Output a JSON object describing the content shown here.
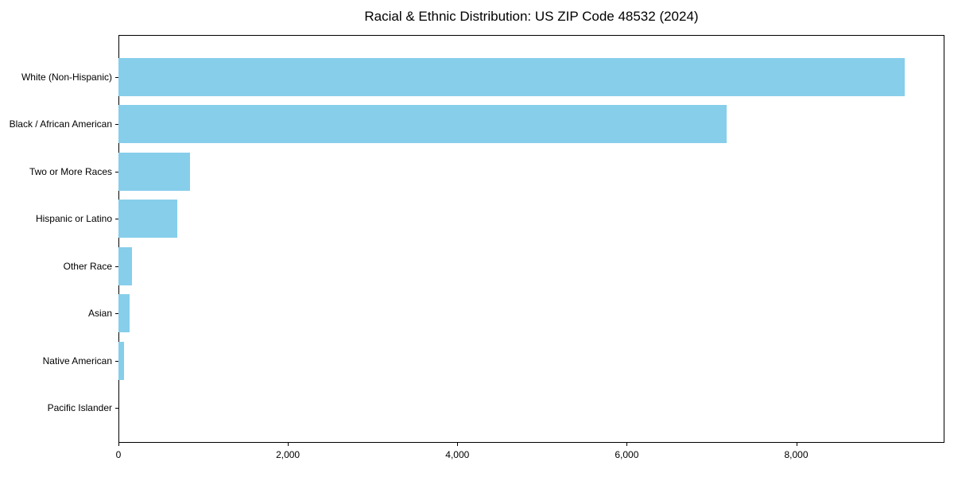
{
  "chart_data": {
    "type": "bar",
    "orientation": "horizontal",
    "title": "Racial & Ethnic Distribution: US ZIP Code 48532 (2024)",
    "categories": [
      "White (Non-Hispanic)",
      "Black / African American",
      "Two or More Races",
      "Hispanic or Latino",
      "Other Race",
      "Asian",
      "Native American",
      "Pacific Islander"
    ],
    "values": [
      9280,
      7180,
      845,
      690,
      155,
      130,
      65,
      0
    ],
    "xlabel": "",
    "ylabel": "",
    "xlim": [
      0,
      9750
    ],
    "x_ticks": [
      0,
      2000,
      4000,
      6000,
      8000
    ],
    "x_tick_labels": [
      "0",
      "2,000",
      "4,000",
      "6,000",
      "8,000"
    ],
    "bar_color": "#87CEEB",
    "spine_color": "#000000",
    "grid": false,
    "legend": null
  }
}
